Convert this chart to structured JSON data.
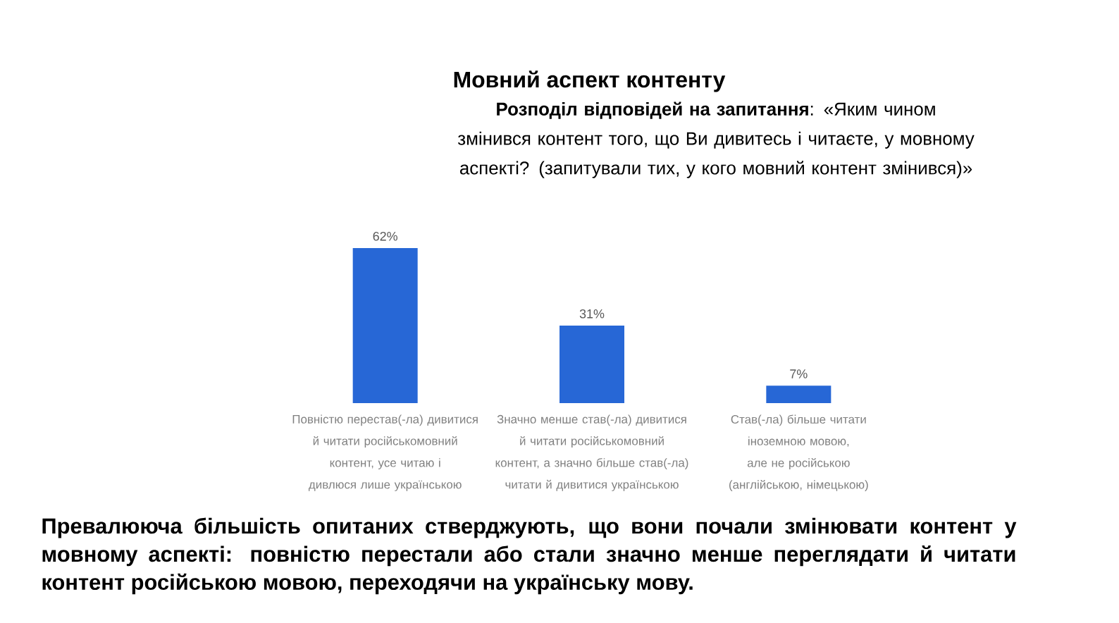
{
  "chart_data": {
    "type": "bar",
    "title": "Мовний аспект контенту",
    "subtitle": "**Розподіл відповідей на запитання**: «Яким чином змінився контент того, що Ви дивитесь і читаєте, у мовному аспекті? (запитували тих, у кого мовний контент змінився)»",
    "categories": [
      "Повністю перестав(-ла) дивитися й читати російськомовний контент, усе читаю і дивлюся лише українською",
      "Значно менше став(-ла) дивитися й читати російськомовний контент, а значно більше став(-ла) читати й дивитися українською",
      "Став(-ла) більше читати іноземною мовою, але не російською (англійською, німецькою)"
    ],
    "values": [
      62,
      31,
      7
    ],
    "value_labels": [
      "62%",
      "31%",
      "7%"
    ],
    "color": "#2767d6",
    "annotations": [
      "Превалююча більшість опитаних стверджують, що вони почали змінювати контент у мовному аспекті: повністю перестали або стали значно менше переглядати й читати контент російською мовою, переходячи на українську мову."
    ]
  }
}
